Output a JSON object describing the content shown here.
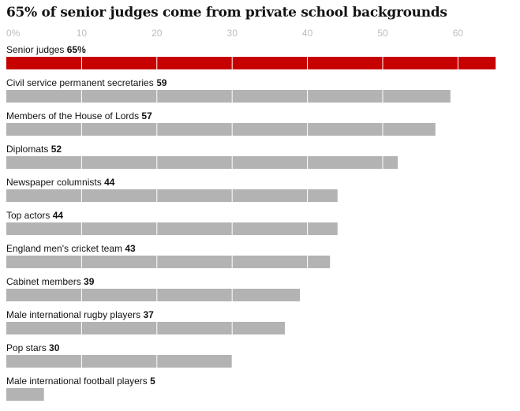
{
  "chart_data": {
    "type": "bar",
    "orientation": "horizontal",
    "title": "65% of senior judges come from private school backgrounds",
    "xlim": [
      0,
      65
    ],
    "x_ticks": [
      "0%",
      "10",
      "20",
      "30",
      "40",
      "50",
      "60"
    ],
    "grid": true,
    "categories": [
      "Senior judges",
      "Civil service permanent secretaries",
      "Members of the House of Lords",
      "Diplomats",
      "Newspaper columnists",
      "Top actors",
      "England men's cricket team",
      "Cabinet members",
      "Male international rugby players",
      "Pop stars",
      "Male international football players"
    ],
    "values": [
      65,
      59,
      57,
      52,
      44,
      44,
      43,
      39,
      37,
      30,
      5
    ],
    "value_labels": [
      "65%",
      "59",
      "57",
      "52",
      "44",
      "44",
      "43",
      "39",
      "37",
      "30",
      "5"
    ],
    "highlight_index": 0,
    "colors": {
      "highlight": "#c70000",
      "bar": "#b3b3b3",
      "grid": "#ffffff",
      "tick": "#bdbdbd",
      "text": "#121212"
    }
  }
}
